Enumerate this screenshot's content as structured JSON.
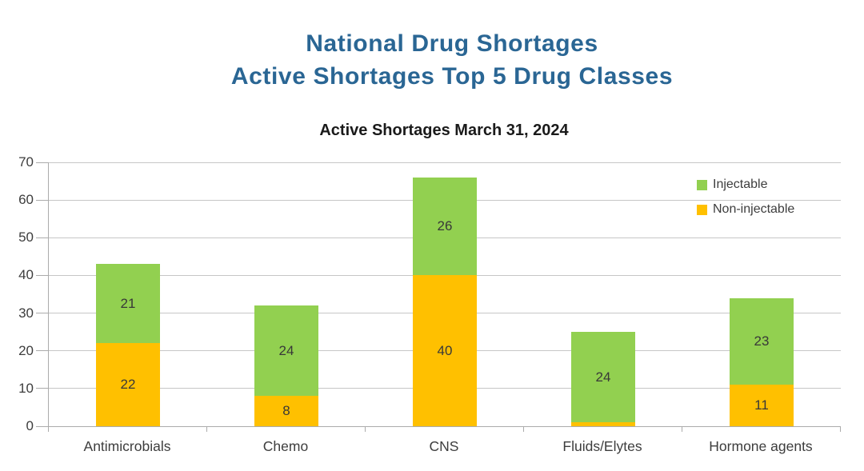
{
  "header": {
    "title_line1": "National Drug Shortages",
    "title_line2": "Active Shortages Top 5 Drug Classes"
  },
  "chart_data": {
    "type": "bar",
    "stacked": true,
    "title": "Active Shortages March 31, 2024",
    "categories": [
      "Antimicrobials",
      "Chemo",
      "CNS",
      "Fluids/Elytes",
      "Hormone agents"
    ],
    "series": [
      {
        "name": "Non-injectable",
        "color": "#FFC000",
        "values": [
          22,
          8,
          40,
          1,
          11
        ]
      },
      {
        "name": "Injectable",
        "color": "#92D050",
        "values": [
          21,
          24,
          26,
          24,
          23
        ]
      }
    ],
    "totals": [
      43,
      32,
      66,
      25,
      34
    ],
    "xlabel": "",
    "ylabel": "",
    "ylim": [
      0,
      70
    ],
    "yticks": [
      0,
      10,
      20,
      30,
      40,
      50,
      60,
      70
    ],
    "grid": true,
    "legend_position": "top-right",
    "legend_order": [
      "Injectable",
      "Non-injectable"
    ]
  },
  "colors": {
    "title_blue": "#2A6694",
    "chart_title_black": "#1A1A1A",
    "injectable_green": "#92D050",
    "non_injectable_orange": "#FFC000",
    "axis_gray": "#ABABAB",
    "grid_gray": "#C6C6C6",
    "text_dark": "#3D3D3D",
    "value_label_dark": "#383838"
  }
}
